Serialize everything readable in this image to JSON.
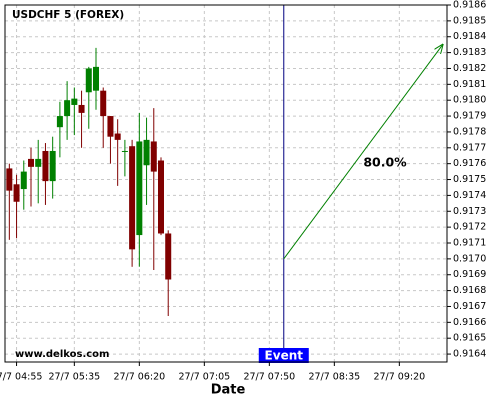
{
  "chart_data": {
    "type": "candlestick",
    "title": "USDCHF 5 (FOREX)",
    "xlabel": "Date",
    "watermark": "www.delkos.com",
    "x": [
      "27/7 04:50",
      "27/7 04:55",
      "27/7 05:00",
      "27/7 05:05",
      "27/7 05:10",
      "27/7 05:15",
      "27/7 05:20",
      "27/7 05:25",
      "27/7 05:30",
      "27/7 05:35",
      "27/7 05:40",
      "27/7 05:45",
      "27/7 05:50",
      "27/7 05:55",
      "27/7 06:00",
      "27/7 06:05",
      "27/7 06:10",
      "27/7 06:15",
      "27/7 06:20",
      "27/7 06:25",
      "27/7 06:30",
      "27/7 06:35",
      "27/7 06:40"
    ],
    "open": [
      0.91757,
      0.91747,
      0.91744,
      0.91763,
      0.91758,
      0.91768,
      0.91749,
      0.91783,
      0.9179,
      0.91797,
      0.91797,
      0.91805,
      0.91806,
      0.91806,
      0.9179,
      0.91779,
      0.91768,
      0.91771,
      0.91715,
      0.91759,
      0.91774,
      0.91762,
      0.91716
    ],
    "high": [
      0.9176,
      0.91753,
      0.91762,
      0.9177,
      0.91775,
      0.91773,
      0.91777,
      0.91799,
      0.91812,
      0.91808,
      0.91806,
      0.91821,
      0.91833,
      0.91808,
      0.9179,
      0.91788,
      0.91775,
      0.91775,
      0.91792,
      0.91789,
      0.91795,
      0.91764,
      0.91718
    ],
    "low": [
      0.91712,
      0.91713,
      0.91731,
      0.91733,
      0.91735,
      0.91734,
      0.91738,
      0.91764,
      0.91775,
      0.91778,
      0.9177,
      0.91782,
      0.91794,
      0.9177,
      0.9176,
      0.91746,
      0.91752,
      0.91695,
      0.91695,
      0.91734,
      0.91693,
      0.91715,
      0.91664
    ],
    "close": [
      0.91743,
      0.91736,
      0.91755,
      0.91758,
      0.91763,
      0.91749,
      0.91768,
      0.9179,
      0.918,
      0.91801,
      0.91792,
      0.9182,
      0.91821,
      0.9179,
      0.91777,
      0.91775,
      0.91768,
      0.91706,
      0.91774,
      0.91775,
      0.91755,
      0.91716,
      0.91687
    ],
    "up_color": "#008000",
    "down_color": "#800000",
    "xlim": [
      "27/7 04:47",
      "27/7 09:53"
    ],
    "xticks": [
      "27/7 04:55",
      "27/7 05:35",
      "27/7 06:20",
      "27/7 07:05",
      "27/7 07:50",
      "27/7 08:35",
      "27/7 09:20"
    ],
    "ylim": [
      0.91635,
      0.9186
    ],
    "yticks": [
      0.9164,
      0.9165,
      0.9166,
      0.9167,
      0.9168,
      0.9169,
      {
        "value": 0.917,
        "label": "0.9170"
      },
      0.9171,
      0.9172,
      0.9173,
      0.9174,
      0.9175,
      0.9176,
      0.9177,
      0.9178,
      0.9179,
      {
        "value": 0.918,
        "label": "0.9180"
      },
      0.9181,
      0.9182,
      0.9183,
      0.9184,
      0.9185,
      0.9186
    ],
    "grid": true,
    "event": {
      "x": "27/7 08:00",
      "label": "Event",
      "color": "#000080"
    },
    "arrow": {
      "x": [
        "27/7 08:00",
        "27/7 09:50"
      ],
      "y": [
        0.917,
        0.91835
      ],
      "label": "80.0%",
      "color": "#008000"
    }
  }
}
